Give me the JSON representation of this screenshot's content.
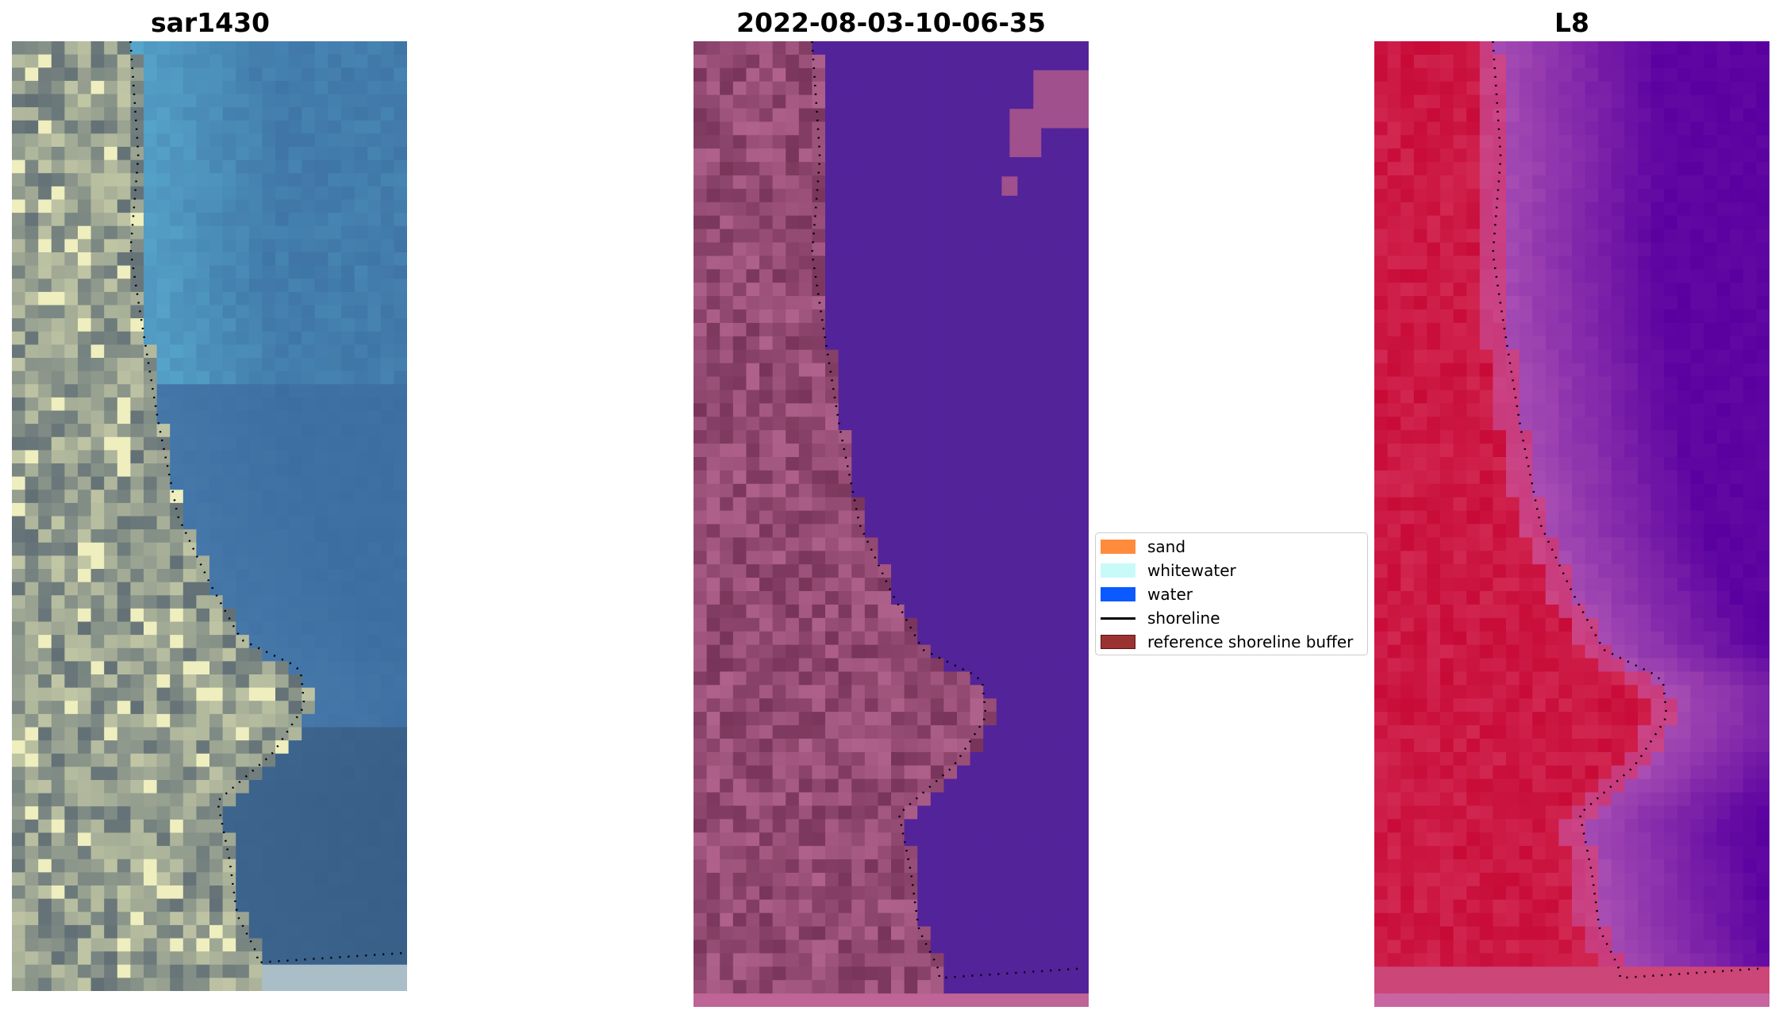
{
  "panels": [
    {
      "title": "sar1430",
      "palette": "true-color"
    },
    {
      "title": "2022-08-03-10-06-35",
      "palette": "classified"
    },
    {
      "title": "L8",
      "palette": "false-color"
    }
  ],
  "legend": {
    "items": [
      {
        "label": "sand",
        "color": "#ff8c3c",
        "kind": "patch"
      },
      {
        "label": "whitewater",
        "color": "#c8fafa",
        "kind": "patch"
      },
      {
        "label": "water",
        "color": "#0a5aff",
        "kind": "patch"
      },
      {
        "label": "shoreline",
        "color": "#000000",
        "kind": "line"
      },
      {
        "label": "reference shoreline buffer",
        "color": "#9b3232",
        "kind": "patch"
      }
    ]
  },
  "colors": {
    "water_class": "#53239a",
    "shoreline": "#000000"
  }
}
